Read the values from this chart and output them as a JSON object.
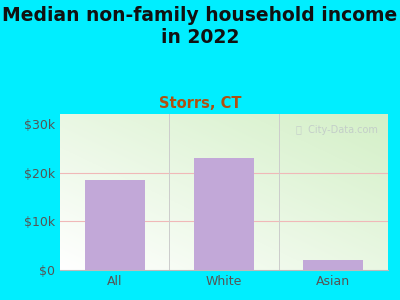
{
  "title": "Median non-family household income\nin 2022",
  "subtitle": "Storrs, CT",
  "categories": [
    "All",
    "White",
    "Asian"
  ],
  "values": [
    18500,
    23000,
    2000
  ],
  "bar_color": "#c2a8d8",
  "title_fontsize": 13.5,
  "subtitle_fontsize": 10.5,
  "subtitle_color": "#b05010",
  "title_color": "#111111",
  "background_outer": "#00eeff",
  "yticks": [
    0,
    10000,
    20000,
    30000
  ],
  "ytick_labels": [
    "$0",
    "$10k",
    "$20k",
    "$30k"
  ],
  "ylim": [
    0,
    32000
  ],
  "watermark": "ⓘ  City-Data.com",
  "grid_color": "#f0b8b8",
  "tick_color": "#555555"
}
